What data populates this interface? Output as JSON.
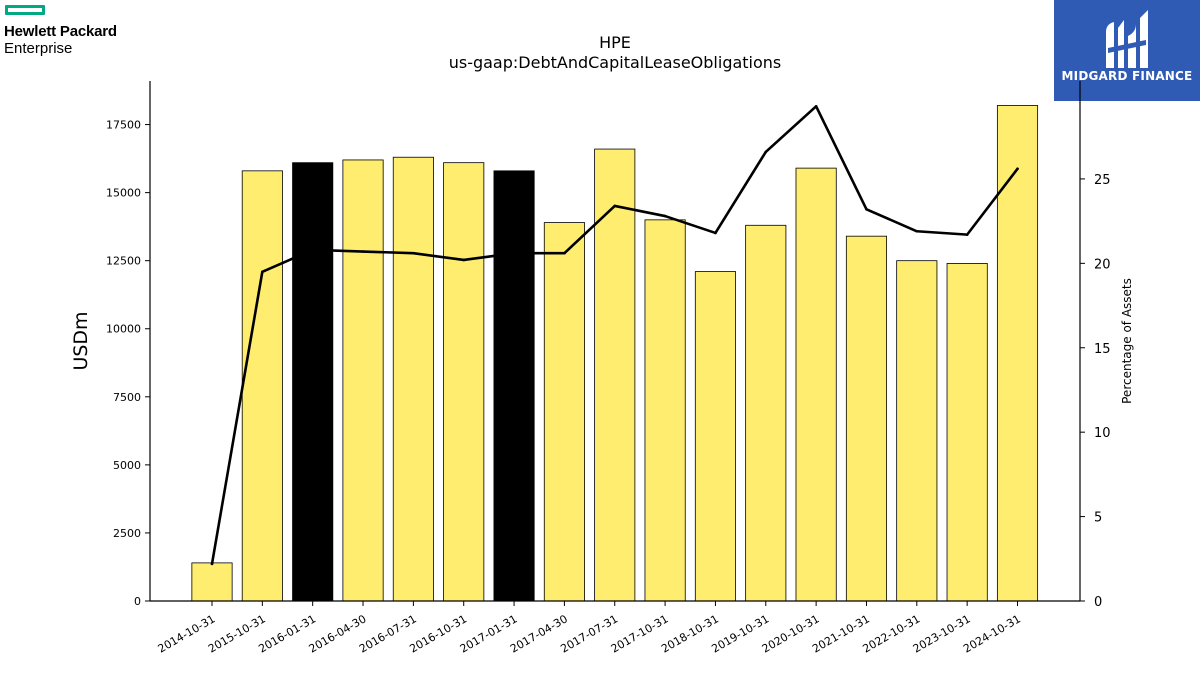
{
  "brand": {
    "company_name": "Hewlett Packard",
    "company_sub": "Enterprise",
    "company_accent": "#01a982",
    "publisher": "MIDGARD FINANCE",
    "publisher_bg": "#2f5bb5"
  },
  "chart_data": {
    "type": "bar",
    "title": "HPE",
    "subtitle": "us-gaap:DebtAndCapitalLeaseObligations",
    "ylabel": "USDm",
    "y2label": "Percentage of Assets",
    "ylim": [
      0,
      19100
    ],
    "y2lim": [
      0,
      30.8
    ],
    "yticks": [
      0,
      2500,
      5000,
      7500,
      10000,
      12500,
      15000,
      17500
    ],
    "y2ticks": [
      0,
      5,
      10,
      15,
      20,
      25
    ],
    "bar_color": "#ffed6f",
    "highlight_color": "#000000",
    "categories": [
      "2014-10-31",
      "2015-10-31",
      "2016-01-31",
      "2016-04-30",
      "2016-07-31",
      "2016-10-31",
      "2017-01-31",
      "2017-04-30",
      "2017-07-31",
      "2017-10-31",
      "2018-10-31",
      "2019-10-31",
      "2020-10-31",
      "2021-10-31",
      "2022-10-31",
      "2023-10-31",
      "2024-10-31"
    ],
    "series": [
      {
        "type": "bar",
        "axis": "left",
        "values": [
          1400,
          15800,
          16100,
          16200,
          16300,
          16100,
          15800,
          13900,
          16600,
          14000,
          12100,
          13800,
          15900,
          13400,
          12500,
          12400,
          18200
        ],
        "highlighted": [
          false,
          false,
          true,
          false,
          false,
          false,
          true,
          false,
          false,
          false,
          false,
          false,
          false,
          false,
          false,
          false,
          false
        ]
      },
      {
        "type": "line",
        "axis": "right",
        "color": "#000000",
        "values": [
          2.2,
          19.5,
          20.8,
          20.7,
          20.6,
          20.2,
          20.6,
          20.6,
          23.4,
          22.8,
          21.8,
          26.6,
          29.3,
          23.2,
          21.9,
          21.7,
          25.6
        ]
      }
    ]
  }
}
